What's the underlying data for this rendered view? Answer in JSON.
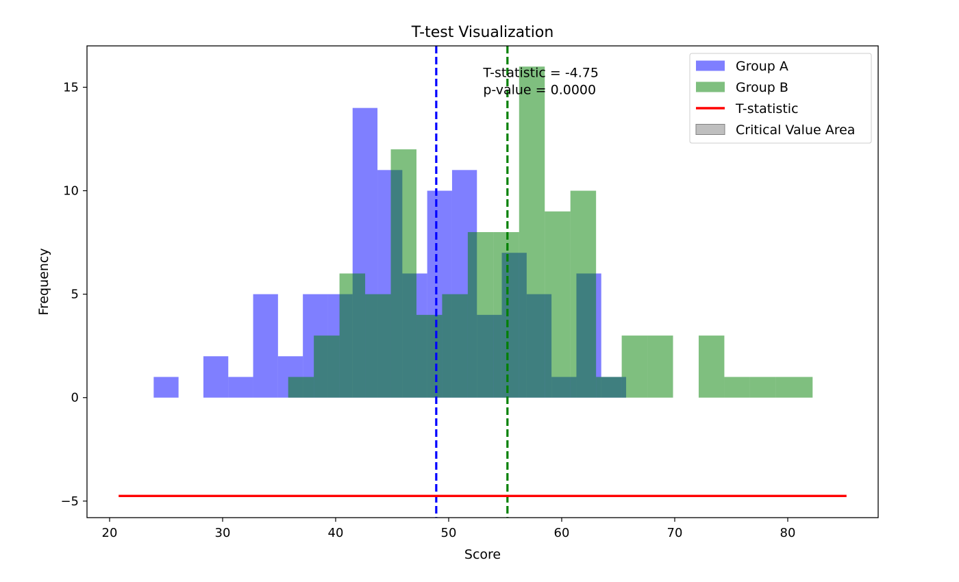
{
  "chart_data": {
    "type": "bar",
    "title": "T-test Visualization",
    "xlabel": "Score",
    "ylabel": "Frequency",
    "xlim": [
      18,
      88
    ],
    "ylim": [
      -5.8,
      17
    ],
    "x_ticks": [
      20,
      30,
      40,
      50,
      60,
      70,
      80
    ],
    "y_ticks": [
      -5,
      0,
      5,
      10,
      15
    ],
    "grid": false,
    "legend_position": "top-right",
    "series": [
      {
        "name": "Group A",
        "color": "#0000ff",
        "opacity": 0.5,
        "edges": [
          23.9,
          26.1,
          28.3,
          30.5,
          32.7,
          34.9,
          37.1,
          39.3,
          41.5,
          43.7,
          45.9,
          48.1,
          50.3,
          52.5,
          54.7,
          56.9,
          59.1,
          61.3,
          63.5,
          65.7,
          67.9
        ],
        "counts": [
          1,
          0,
          2,
          1,
          5,
          2,
          5,
          5,
          14,
          11,
          6,
          10,
          11,
          4,
          7,
          5,
          1,
          6,
          1,
          0
        ]
      },
      {
        "name": "Group B",
        "color": "#008000",
        "opacity": 0.5,
        "edges": [
          35.8,
          38.07,
          40.34,
          42.61,
          44.88,
          47.15,
          49.42,
          51.69,
          53.96,
          56.23,
          58.5,
          60.77,
          63.04,
          65.31,
          67.58,
          69.85,
          72.12,
          74.39,
          76.66,
          78.93,
          82.2
        ],
        "counts": [
          1,
          3,
          6,
          5,
          12,
          4,
          5,
          8,
          8,
          16,
          9,
          10,
          1,
          3,
          3,
          0,
          3,
          1,
          1,
          1
        ]
      }
    ],
    "vlines": [
      {
        "name": "Group A mean",
        "x": 48.9,
        "color": "#0000ff",
        "style": "dashed"
      },
      {
        "name": "Group B mean",
        "x": 55.2,
        "color": "#008000",
        "style": "dashed"
      }
    ],
    "tline": {
      "name": "T-statistic",
      "y": -4.75,
      "x_start": 20.8,
      "x_end": 85.2,
      "color": "#ff0000"
    },
    "critical_area": {
      "name": "Critical Value Area",
      "color": "#808080",
      "opacity": 0.5
    },
    "annotation": {
      "line1": "T-statistic = -4.75",
      "line2": "p-value = 0.0000",
      "x": 53.05,
      "y": 15.7
    }
  }
}
